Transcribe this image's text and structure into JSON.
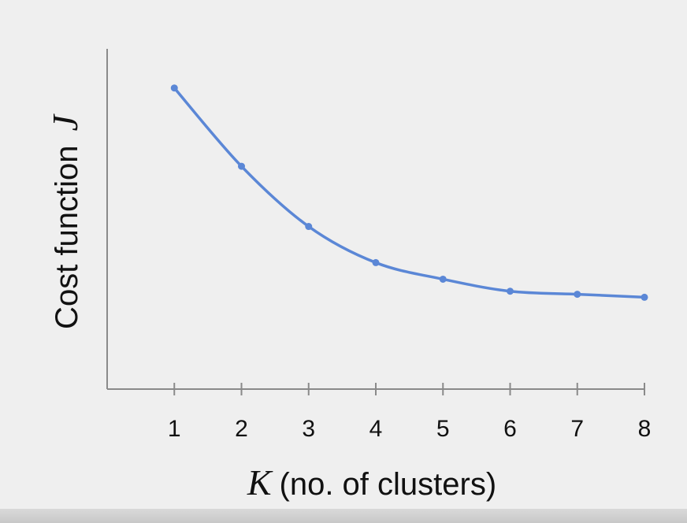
{
  "chart_data": {
    "type": "line",
    "title": "",
    "xlabel_var": "K",
    "xlabel_text": "(no. of clusters)",
    "ylabel_text": "Cost function",
    "ylabel_var": "J",
    "x": [
      1,
      2,
      3,
      4,
      5,
      6,
      7,
      8
    ],
    "x_tick_labels": [
      "1",
      "2",
      "3",
      "4",
      "5",
      "6",
      "7",
      "8"
    ],
    "series": [
      {
        "values": [
          100,
          74,
          54,
          42,
          36.5,
          32.5,
          31.5,
          30.5
        ],
        "color": "#5b87d6"
      }
    ],
    "xlim": [
      0,
      8
    ],
    "ylim": [
      0,
      113
    ],
    "y_ticks_shown": false,
    "grid": false,
    "legend": "none"
  }
}
